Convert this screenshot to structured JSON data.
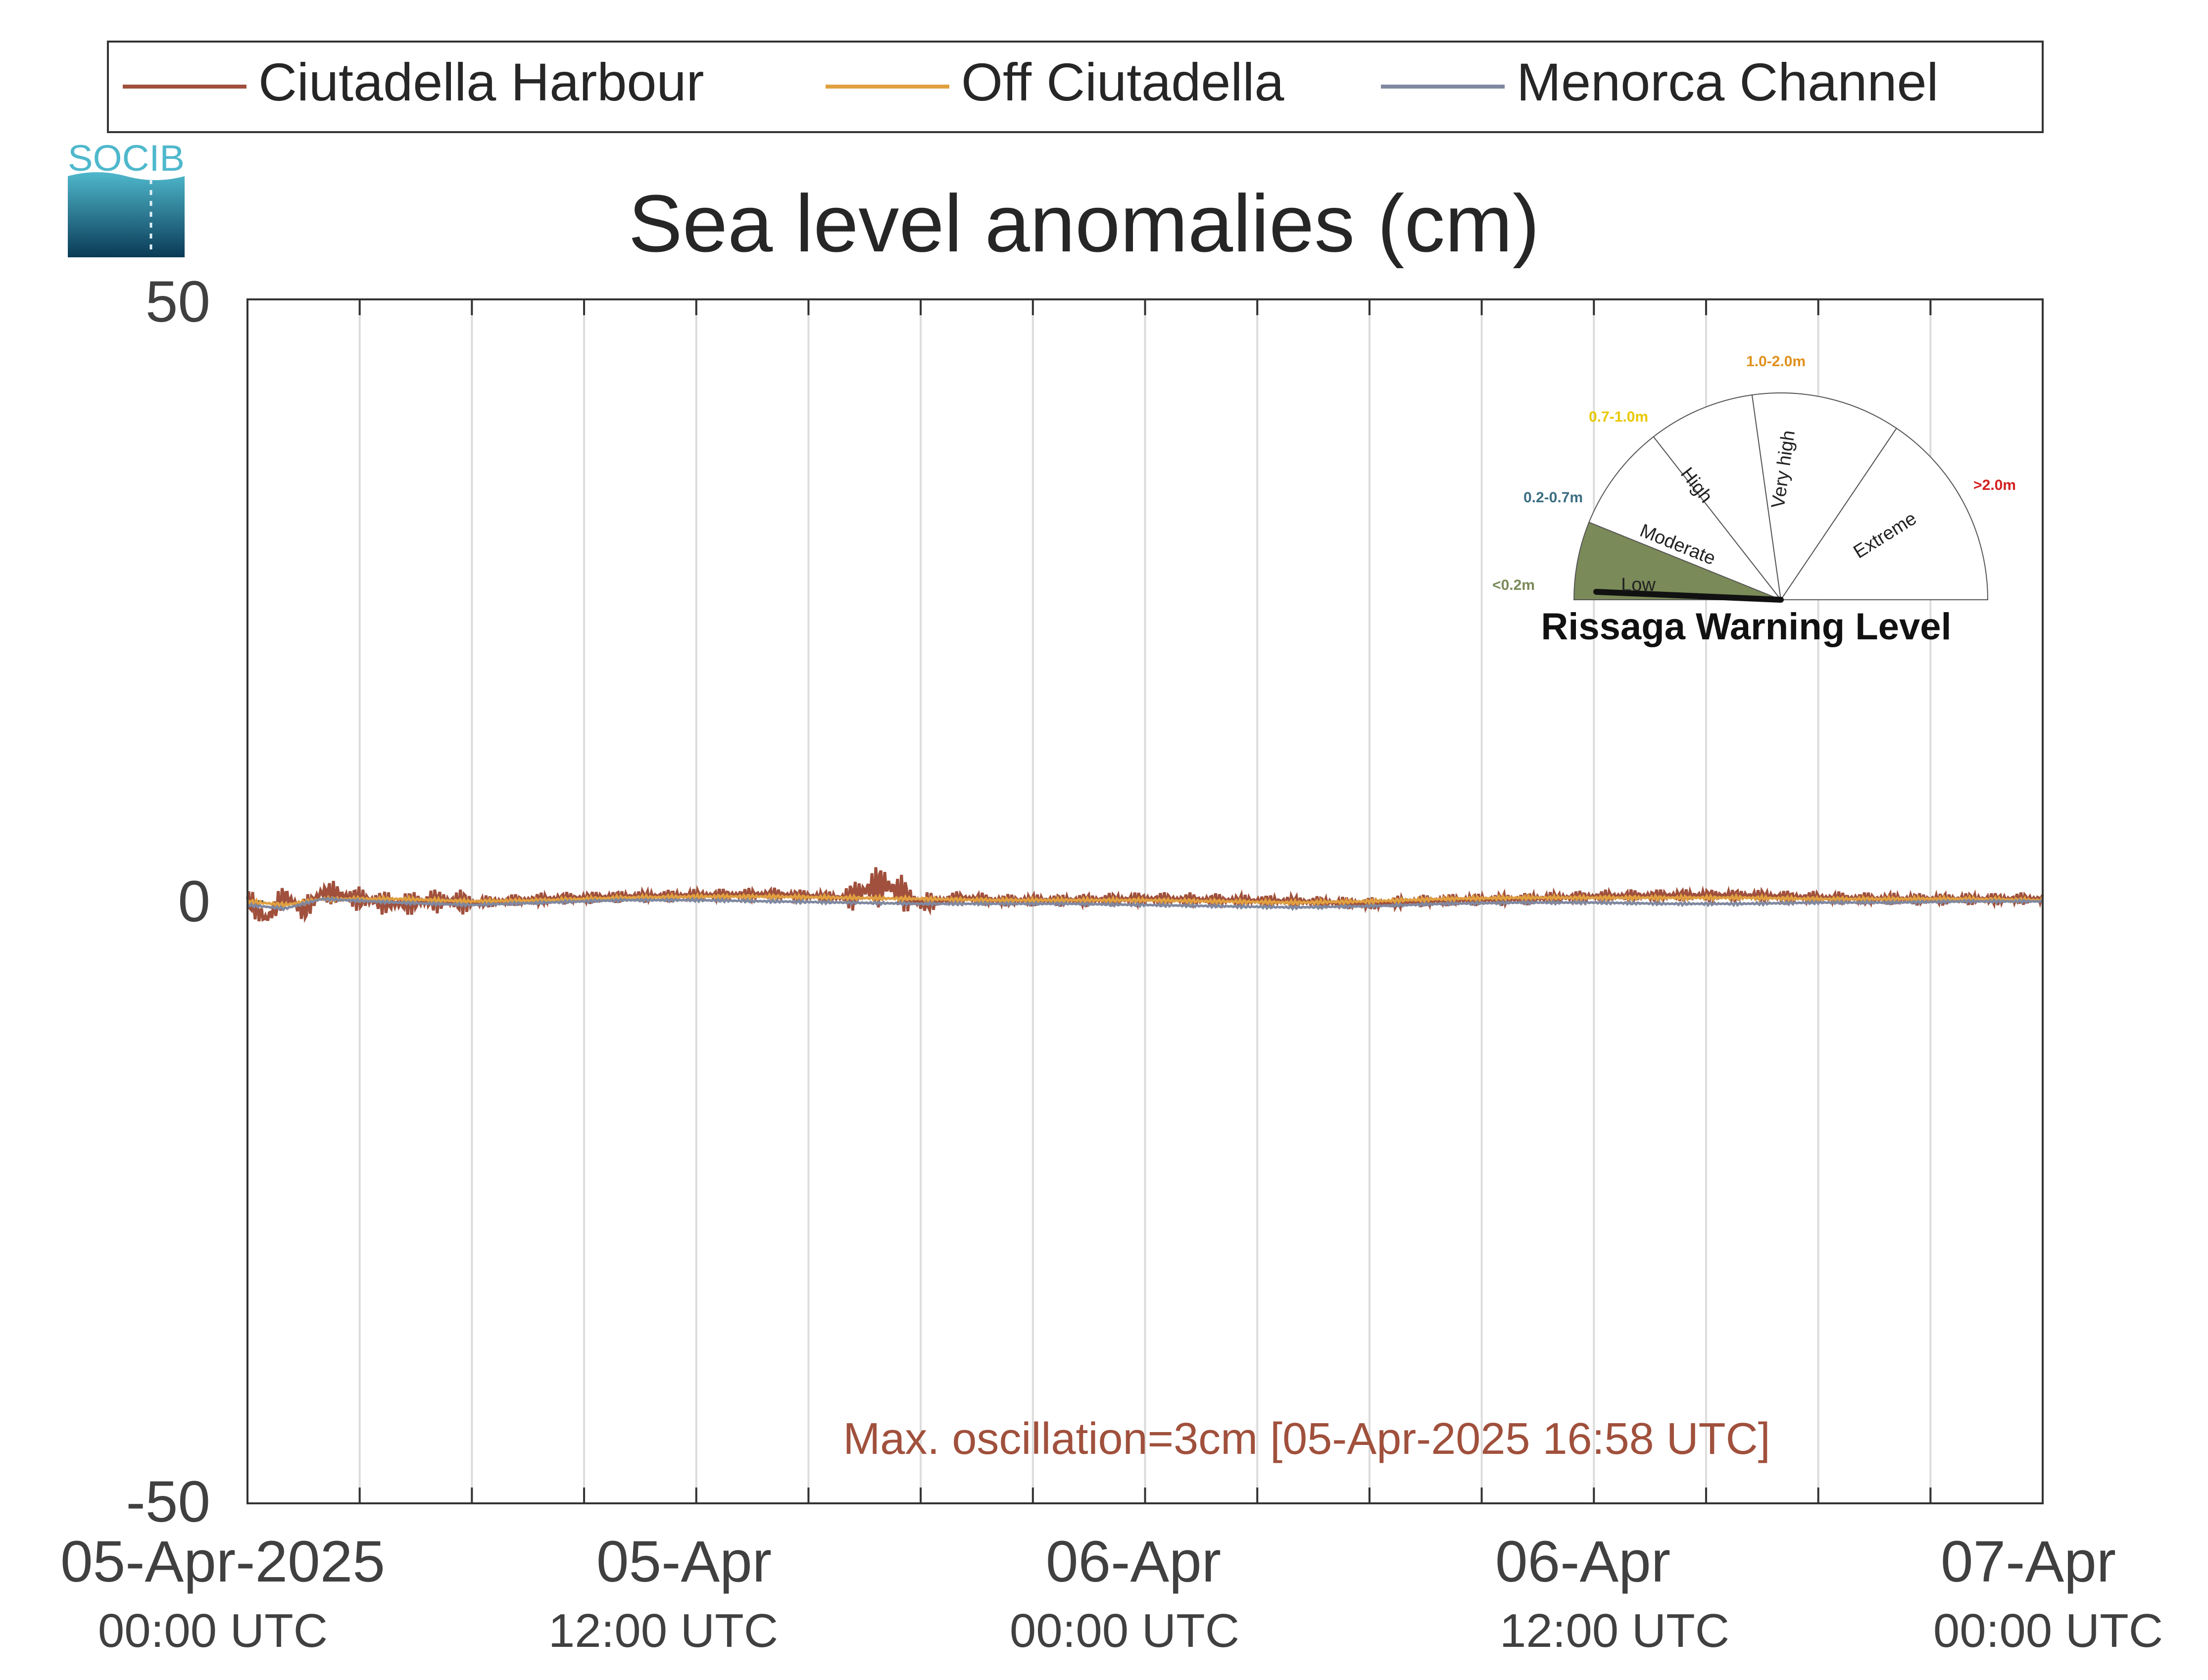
{
  "logo": {
    "text": "SOCIB"
  },
  "chart_data": {
    "type": "line",
    "title": "Sea level anomalies (cm)",
    "xlabel": "",
    "ylabel": "",
    "ylim": [
      -50,
      50
    ],
    "yticks": [
      50,
      0,
      -50
    ],
    "xlim": [
      "2025-04-05T00:00",
      "2025-04-07T00:00"
    ],
    "xtick_labels": [
      {
        "date": "05-Apr-2025",
        "time": "00:00 UTC"
      },
      {
        "date": "05-Apr",
        "time": "12:00 UTC"
      },
      {
        "date": "06-Apr",
        "time": "00:00 UTC"
      },
      {
        "date": "06-Apr",
        "time": "12:00 UTC"
      },
      {
        "date": "07-Apr",
        "time": "00:00 UTC"
      }
    ],
    "grid": "vertical",
    "legend_position": "top",
    "series": [
      {
        "name": "Ciutadella Harbour",
        "color": "#a0503c",
        "x_hours": [
          0,
          0.5,
          1,
          1.5,
          2,
          3,
          4,
          5,
          6,
          8,
          10,
          12,
          14,
          16,
          17,
          18,
          19,
          20,
          22,
          24,
          26,
          28,
          30,
          32,
          34,
          36,
          38,
          40,
          42,
          44,
          46,
          48
        ],
        "values": [
          0.2,
          -1.5,
          0.5,
          -0.8,
          0.8,
          0.2,
          -0.2,
          0.1,
          -0.1,
          0.2,
          0.4,
          0.5,
          0.6,
          0.3,
          1.5,
          -0.2,
          0.3,
          0.1,
          0.1,
          0.2,
          0.1,
          0.0,
          -0.2,
          0.1,
          0.2,
          0.4,
          0.5,
          0.5,
          0.3,
          0.2,
          0.2,
          0.2
        ]
      },
      {
        "name": "Off Ciutadella",
        "color": "#e0a040",
        "x_hours": [
          0,
          1,
          2,
          4,
          6,
          8,
          10,
          12,
          14,
          16,
          18,
          20,
          22,
          24,
          26,
          28,
          30,
          32,
          34,
          36,
          38,
          40,
          42,
          44,
          46,
          48
        ],
        "values": [
          0.0,
          -0.3,
          0.2,
          0.2,
          0.0,
          0.1,
          0.3,
          0.4,
          0.4,
          0.3,
          0.2,
          0.1,
          0.1,
          0.1,
          0.0,
          -0.1,
          0.0,
          0.2,
          0.3,
          0.3,
          0.3,
          0.3,
          0.2,
          0.2,
          0.2,
          0.1
        ]
      },
      {
        "name": "Menorca Channel",
        "color": "#8088a0",
        "x_hours": [
          0,
          1,
          2,
          4,
          6,
          8,
          10,
          12,
          14,
          16,
          18,
          20,
          22,
          24,
          26,
          28,
          30,
          32,
          34,
          36,
          38,
          40,
          42,
          44,
          46,
          48
        ],
        "values": [
          -0.3,
          -0.6,
          0.2,
          -0.1,
          -0.3,
          -0.1,
          0.1,
          0.1,
          0.0,
          -0.1,
          -0.2,
          -0.2,
          -0.2,
          -0.3,
          -0.4,
          -0.5,
          -0.4,
          -0.2,
          -0.1,
          -0.1,
          -0.2,
          -0.2,
          -0.1,
          -0.1,
          0.0,
          0.0
        ]
      }
    ],
    "annotation": "Max. oscillation=3cm [05-Apr-2025 16:58 UTC]"
  },
  "gauge": {
    "title": "Rissaga Warning Level",
    "current_level": "Low",
    "segments": [
      {
        "label": "Low",
        "range": "<0.2m",
        "fill": "#7a8a58",
        "range_color": "#7a8a58",
        "active": true
      },
      {
        "label": "Moderate",
        "range": "0.2-0.7m",
        "fill": "#ffffff",
        "range_color": "#3c6e82",
        "active": false
      },
      {
        "label": "High",
        "range": "0.7-1.0m",
        "fill": "#ffffff",
        "range_color": "#e8c800",
        "active": false
      },
      {
        "label": "Very high",
        "range": "1.0-2.0m",
        "fill": "#ffffff",
        "range_color": "#e0901c",
        "active": false
      },
      {
        "label": "Extreme",
        "range": ">2.0m",
        "fill": "#ffffff",
        "range_color": "#d42020",
        "active": false
      }
    ]
  }
}
